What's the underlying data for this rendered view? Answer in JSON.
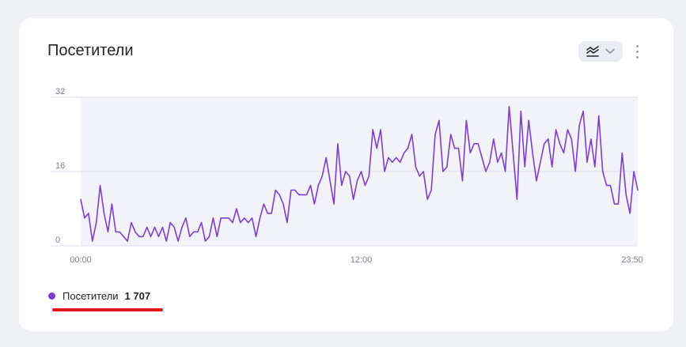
{
  "card": {
    "title": "Посетители",
    "chart_type_icon": "area-chart-icon",
    "chevron_icon": "chevron-down-icon",
    "more_icon": "more-vertical-icon"
  },
  "colors": {
    "series": "#7e3cd8",
    "plot_bg": "#f2f3f8",
    "grid": "#dcdde8",
    "tick": "#7a7f8a",
    "annotation": "#e8121b"
  },
  "legend": {
    "name": "Посетители",
    "value": "1 707"
  },
  "chart_data": {
    "type": "line",
    "title": "Посетители",
    "xlabel": "",
    "ylabel": "",
    "ylim": [
      0,
      32
    ],
    "yticks": [
      "0",
      "16",
      "32"
    ],
    "xticks": [
      "00:00",
      "12:00",
      "23:50"
    ],
    "xlim": [
      "00:00",
      "23:50"
    ],
    "interval_minutes": 10,
    "grid": true,
    "series": [
      {
        "name": "Посетители",
        "total": "1 707",
        "values": [
          10,
          6,
          7,
          1,
          5,
          13,
          7,
          3,
          9,
          3,
          3,
          2,
          1,
          5,
          3,
          2,
          2,
          4,
          2,
          4,
          2,
          4,
          1,
          5,
          4,
          1,
          4,
          6,
          2,
          3,
          3,
          5,
          1,
          2,
          6,
          2,
          6,
          6,
          6,
          5,
          8,
          5,
          6,
          5,
          6,
          2,
          6,
          9,
          7,
          7,
          12,
          11,
          9,
          5,
          12,
          12,
          11,
          11,
          11,
          13,
          9,
          13,
          15,
          19,
          14,
          9,
          22,
          13,
          16,
          15,
          10,
          14,
          16,
          13,
          15,
          25,
          21,
          25,
          16,
          19,
          18,
          19,
          18,
          20,
          21,
          24,
          17,
          15,
          16,
          10,
          12,
          24,
          27,
          16,
          17,
          24,
          21,
          21,
          14,
          27,
          20,
          22,
          22,
          19,
          16,
          18,
          23,
          18,
          20,
          16,
          30,
          20,
          10,
          29,
          17,
          27,
          20,
          14,
          18,
          22,
          23,
          17,
          25,
          22,
          20,
          25,
          23,
          16,
          26,
          29,
          18,
          23,
          17,
          28,
          16,
          13,
          13,
          9,
          9,
          20,
          11,
          7,
          16,
          12
        ]
      }
    ]
  }
}
